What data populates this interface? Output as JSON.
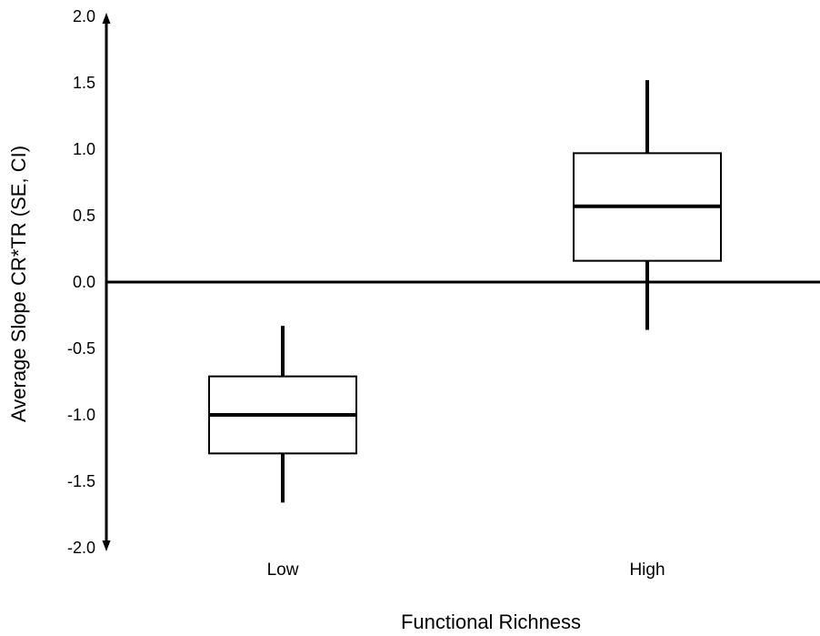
{
  "chart_data": {
    "type": "box",
    "xlabel": "Functional Richness",
    "ylabel": "Average Slope CR*TR (SE, CI)",
    "ylim": [
      -2.0,
      2.0
    ],
    "yticks": [
      "2.0",
      "1.5",
      "1.0",
      "0.5",
      "0.0",
      "-0.5",
      "-1.0",
      "-1.5",
      "-2.0"
    ],
    "ytick_values": [
      2.0,
      1.5,
      1.0,
      0.5,
      0.0,
      -0.5,
      -1.0,
      -1.5,
      -2.0
    ],
    "categories": [
      "Low",
      "High"
    ],
    "boxes": [
      {
        "category": "Low",
        "whisker_low": -1.66,
        "box_low": -1.29,
        "median": -1.0,
        "box_high": -0.71,
        "whisker_high": -0.33
      },
      {
        "category": "High",
        "whisker_low": -0.36,
        "box_low": 0.16,
        "median": 0.57,
        "box_high": 0.97,
        "whisker_high": 1.52
      }
    ],
    "reference_line": 0.0,
    "grid": false,
    "legend": "none"
  }
}
